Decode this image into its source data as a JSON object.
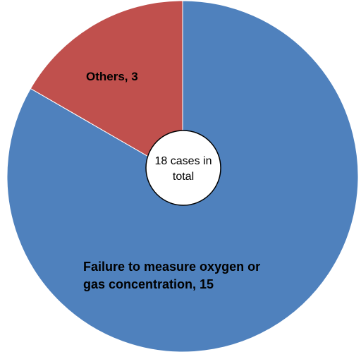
{
  "chart_data": {
    "type": "pie",
    "values": [
      15,
      3
    ],
    "value_labels": [
      "Failure to measure oxygen or gas concentration, 15",
      "Others, 3"
    ],
    "colors": [
      "#4f81bd",
      "#c0504d"
    ],
    "annotation": "18 cases in total"
  }
}
